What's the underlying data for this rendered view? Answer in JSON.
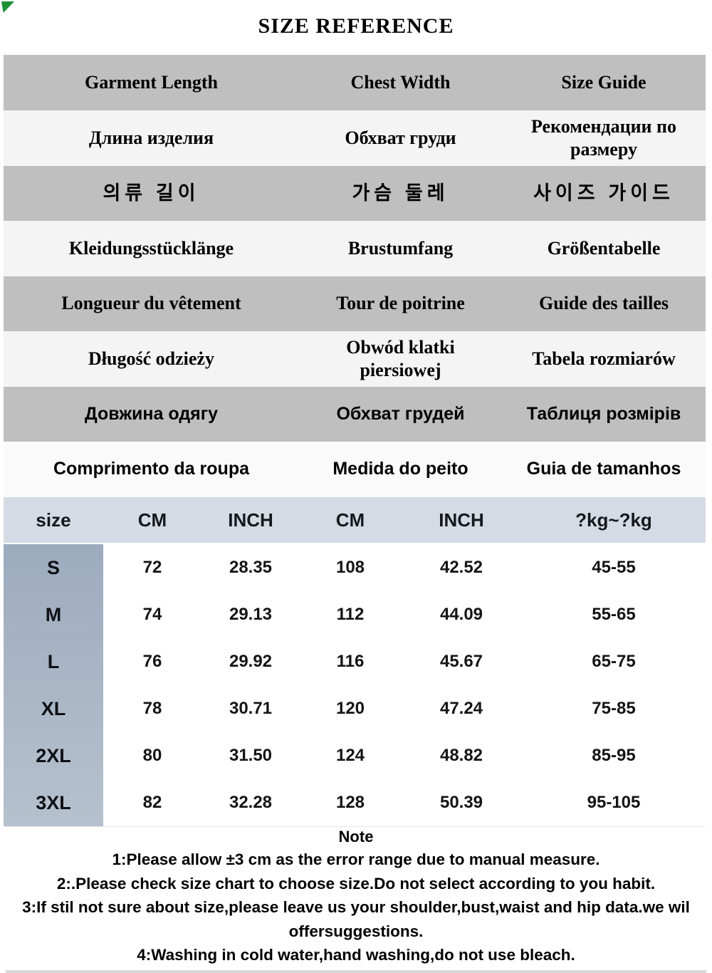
{
  "title": "SIZE REFERENCE",
  "colors": {
    "row-gray": "#bfbfbf",
    "row-light": "#f4f4f4",
    "row-white": "#fafafa",
    "table-header-blue": "#d5dbe4",
    "size-col-top": "#9cabbe",
    "size-col-bottom": "#b6c1ce",
    "corner-green": "#1d9136",
    "bottom-strip-gray": "#d8d8d8"
  },
  "lang_table": {
    "rows": [
      {
        "garment": "Garment Length",
        "chest": "Chest Width",
        "guide": "Size Guide"
      },
      {
        "garment": "Длина изделия",
        "chest": "Обхват груди",
        "guide": "Рекомендации по размеру"
      },
      {
        "garment": "의류 길이",
        "chest": "가슴 둘레",
        "guide": "사이즈 가이드"
      },
      {
        "garment": "Kleidungsstücklänge",
        "chest": "Brustumfang",
        "guide": "Größentabelle"
      },
      {
        "garment": "Longueur du vêtement",
        "chest": "Tour de poitrine",
        "guide": "Guide des tailles"
      },
      {
        "garment": "Długość odzieży",
        "chest": "Obwód klatki piersiowej",
        "guide": "Tabela rozmiarów"
      },
      {
        "garment": "Довжина одягу",
        "chest": "Обхват грудей",
        "guide": "Таблиця розмірів"
      },
      {
        "garment": "Comprimento da roupa",
        "chest": "Medida do peito",
        "guide": "Guia de tamanhos"
      }
    ]
  },
  "size_table": {
    "headers": {
      "size": "size",
      "len_cm": "CM",
      "len_inch": "INCH",
      "chest_cm": "CM",
      "chest_inch": "INCH",
      "weight": "?kg~?kg"
    },
    "rows": [
      {
        "size": "S",
        "len_cm": "72",
        "len_inch": "28.35",
        "chest_cm": "108",
        "chest_inch": "42.52",
        "weight": "45-55"
      },
      {
        "size": "M",
        "len_cm": "74",
        "len_inch": "29.13",
        "chest_cm": "112",
        "chest_inch": "44.09",
        "weight": "55-65"
      },
      {
        "size": "L",
        "len_cm": "76",
        "len_inch": "29.92",
        "chest_cm": "116",
        "chest_inch": "45.67",
        "weight": "65-75"
      },
      {
        "size": "XL",
        "len_cm": "78",
        "len_inch": "30.71",
        "chest_cm": "120",
        "chest_inch": "47.24",
        "weight": "75-85"
      },
      {
        "size": "2XL",
        "len_cm": "80",
        "len_inch": "31.50",
        "chest_cm": "124",
        "chest_inch": "48.82",
        "weight": "85-95"
      },
      {
        "size": "3XL",
        "len_cm": "82",
        "len_inch": "32.28",
        "chest_cm": "128",
        "chest_inch": "50.39",
        "weight": "95-105"
      }
    ]
  },
  "notes": {
    "title": "Note",
    "lines": [
      "1:Please allow ±3 cm as the error range due to manual measure.",
      "2:.Please check size chart to choose size.Do not select according to you habit.",
      "3:If stil not sure about size,please leave us your shoulder,bust,waist and hip data.we wil offersuggestions.",
      "4:Washing in cold water,hand washing,do not use bleach."
    ]
  }
}
